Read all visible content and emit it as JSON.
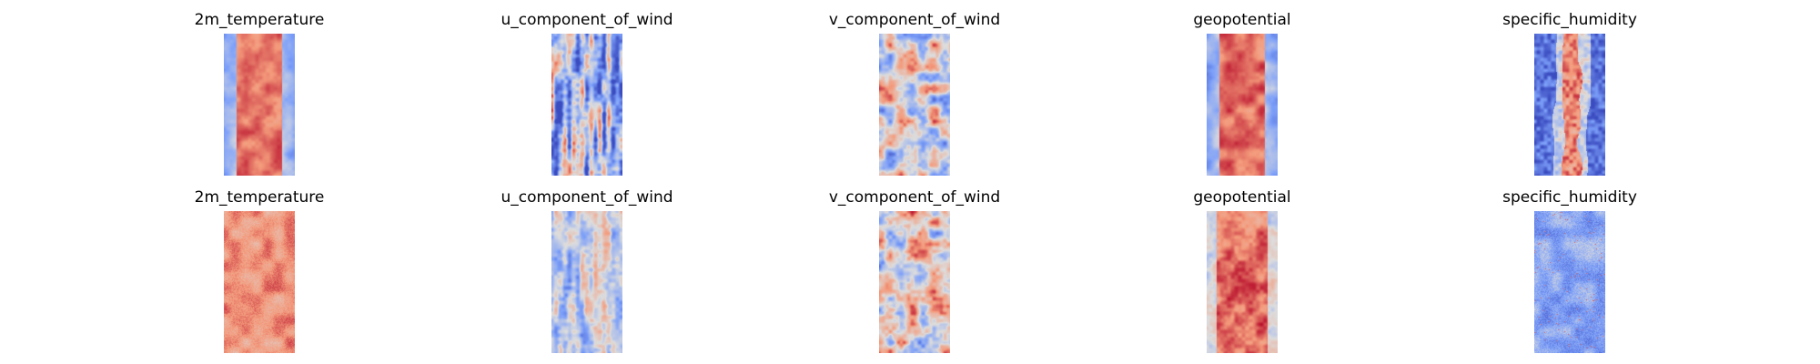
{
  "chart_data": [
    {
      "type": "heatmap",
      "title": "2m_temperature",
      "colormap": "coolwarm",
      "pattern": "band",
      "seed": 11,
      "mean": 0.6,
      "noise": 0.12
    },
    {
      "type": "heatmap",
      "title": "u_component_of_wind",
      "colormap": "coolwarm",
      "pattern": "stripes",
      "seed": 23,
      "mean": 0.38,
      "noise": 0.28
    },
    {
      "type": "heatmap",
      "title": "v_component_of_wind",
      "colormap": "coolwarm",
      "pattern": "noise",
      "seed": 37,
      "mean": 0.5,
      "noise": 0.22
    },
    {
      "type": "heatmap",
      "title": "geopotential",
      "colormap": "coolwarm",
      "pattern": "band",
      "seed": 41,
      "mean": 0.62,
      "noise": 0.14
    },
    {
      "type": "heatmap",
      "title": "specific_humidity",
      "colormap": "coolwarm",
      "pattern": "narrow_band",
      "seed": 53,
      "mean": 0.25,
      "noise": 0.2
    },
    {
      "type": "heatmap",
      "title": "2m_temperature",
      "colormap": "coolwarm",
      "pattern": "uniform_warm",
      "seed": 61,
      "mean": 0.75,
      "noise": 0.1
    },
    {
      "type": "heatmap",
      "title": "u_component_of_wind",
      "colormap": "coolwarm",
      "pattern": "stripes_faint",
      "seed": 73,
      "mean": 0.45,
      "noise": 0.2
    },
    {
      "type": "heatmap",
      "title": "v_component_of_wind",
      "colormap": "coolwarm",
      "pattern": "noise",
      "seed": 89,
      "mean": 0.55,
      "noise": 0.25
    },
    {
      "type": "heatmap",
      "title": "geopotential",
      "colormap": "coolwarm",
      "pattern": "band_warm",
      "seed": 97,
      "mean": 0.72,
      "noise": 0.14
    },
    {
      "type": "heatmap",
      "title": "specific_humidity",
      "colormap": "coolwarm",
      "pattern": "speckle",
      "seed": 101,
      "mean": 0.28,
      "noise": 0.16
    }
  ]
}
